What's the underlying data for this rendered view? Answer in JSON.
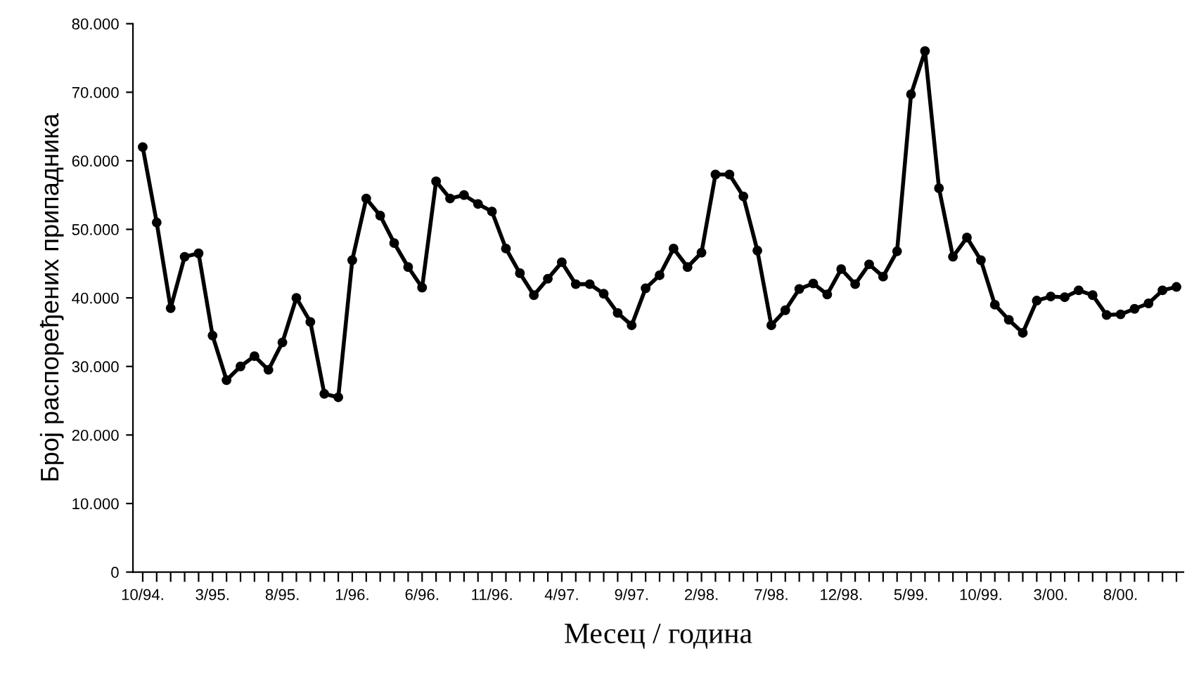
{
  "chart_data": {
    "type": "line",
    "xlabel": "Месец / година",
    "ylabel": "Број распоређених припадника",
    "categories": [
      "10/94.",
      null,
      null,
      null,
      null,
      "3/95.",
      null,
      null,
      null,
      null,
      "8/95.",
      null,
      null,
      null,
      null,
      "1/96.",
      null,
      null,
      null,
      null,
      "6/96.",
      null,
      null,
      null,
      null,
      "11/96.",
      null,
      null,
      null,
      null,
      "4/97.",
      null,
      null,
      null,
      null,
      "9/97.",
      null,
      null,
      null,
      null,
      "2/98.",
      null,
      null,
      null,
      null,
      "7/98.",
      null,
      null,
      null,
      null,
      "12/98.",
      null,
      null,
      null,
      null,
      "5/99.",
      null,
      null,
      null,
      null,
      "10/99.",
      null,
      null,
      null,
      null,
      "3/00.",
      null,
      null,
      null,
      null,
      "8/00.",
      null,
      null,
      null,
      null
    ],
    "series": [
      {
        "color": "#000000",
        "values": [
          62000,
          51000,
          38500,
          46000,
          46500,
          34500,
          28000,
          30000,
          31500,
          29500,
          33500,
          40000,
          36500,
          26000,
          25500,
          45500,
          54500,
          52000,
          48000,
          44500,
          41500,
          57000,
          54500,
          55000,
          53700,
          52600,
          47200,
          43600,
          40400,
          42800,
          45200,
          42000,
          42000,
          40600,
          37800,
          36000,
          41400,
          43300,
          47200,
          44500,
          46600,
          58000,
          58000,
          54800,
          46900,
          36000,
          38200,
          41300,
          42100,
          40500,
          44200,
          42000,
          44900,
          43100,
          46800,
          69700,
          76000,
          56000,
          46000,
          48800,
          45500,
          39000,
          36800,
          34900,
          39600,
          40200,
          40100,
          41100,
          40400,
          37500,
          37600,
          38400,
          39200,
          41100,
          41600
        ]
      }
    ],
    "ylim": [
      0,
      80000
    ],
    "yticks": [
      {
        "value": 0,
        "label": "0"
      },
      {
        "value": 10000,
        "label": "10.000"
      },
      {
        "value": 20000,
        "label": "20.000"
      },
      {
        "value": 30000,
        "label": "30.000"
      },
      {
        "value": 40000,
        "label": "40.000"
      },
      {
        "value": 50000,
        "label": "50.000"
      },
      {
        "value": 60000,
        "label": "60.000"
      },
      {
        "value": 70000,
        "label": "70.000"
      },
      {
        "value": 80000,
        "label": "80.000"
      }
    ],
    "marker": "circle",
    "line_style": "solid"
  }
}
